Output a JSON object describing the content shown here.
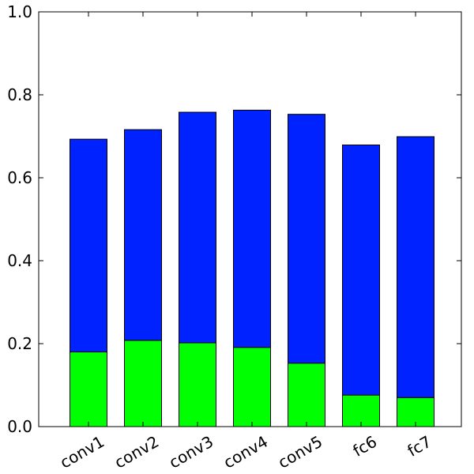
{
  "chart_data": {
    "type": "bar",
    "stacked": true,
    "categories": [
      "conv1",
      "conv2",
      "conv3",
      "conv4",
      "conv5",
      "fc6",
      "fc7"
    ],
    "series": [
      {
        "values": [
          0.18,
          0.208,
          0.202,
          0.191,
          0.153,
          0.076,
          0.07
        ],
        "color": "#00ff00"
      },
      {
        "values": [
          0.513,
          0.508,
          0.556,
          0.572,
          0.6,
          0.603,
          0.629
        ],
        "color": "#0022ff"
      }
    ],
    "totals": [
      0.693,
      0.716,
      0.758,
      0.763,
      0.753,
      0.679,
      0.699
    ],
    "ylim": [
      0,
      1.0
    ],
    "yticks": [
      0.0,
      0.2,
      0.4,
      0.6,
      0.8,
      1.0
    ],
    "ytick_labels": [
      "0.0",
      "0.2",
      "0.4",
      "0.6",
      "0.8",
      "1.0"
    ],
    "xtick_rotation_deg": 30,
    "grid": false,
    "title": "",
    "xlabel": "",
    "ylabel": ""
  }
}
